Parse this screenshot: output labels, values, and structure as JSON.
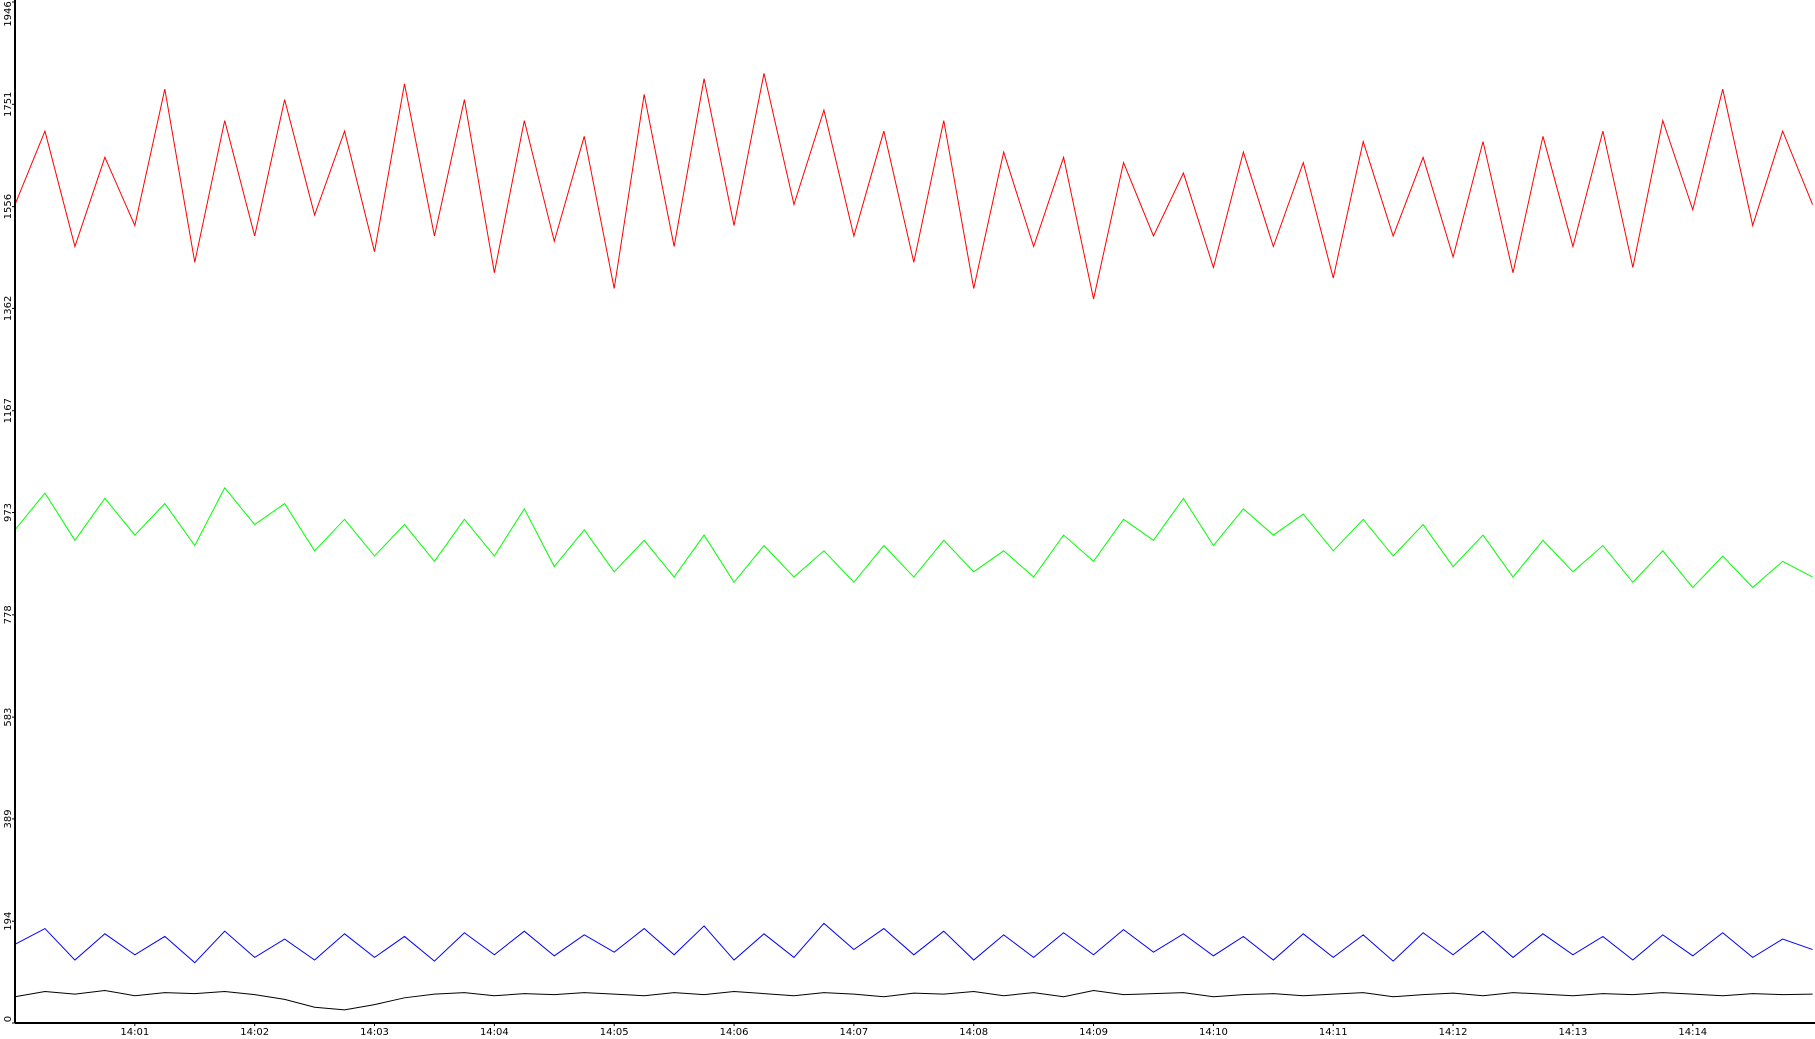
{
  "chart_data": {
    "type": "line",
    "x": [
      0,
      0.25,
      0.5,
      0.75,
      1,
      1.25,
      1.5,
      1.75,
      2,
      2.25,
      2.5,
      2.75,
      3,
      3.25,
      3.5,
      3.75,
      4,
      4.25,
      4.5,
      4.75,
      5,
      5.25,
      5.5,
      5.75,
      6,
      6.25,
      6.5,
      6.75,
      7,
      7.25,
      7.5,
      7.75,
      8,
      8.25,
      8.5,
      8.75,
      9,
      9.25,
      9.5,
      9.75,
      10,
      10.25,
      10.5,
      10.75,
      11,
      11.25,
      11.5,
      11.75,
      12,
      12.25,
      12.5,
      12.75,
      13,
      13.25,
      13.5,
      13.75,
      14,
      14.25,
      14.5,
      14.75,
      15
    ],
    "xlim": [
      0,
      15.02
    ],
    "xticks": [
      {
        "value": 1,
        "label": "14:01"
      },
      {
        "value": 2,
        "label": "14:02"
      },
      {
        "value": 3,
        "label": "14:03"
      },
      {
        "value": 4,
        "label": "14:04"
      },
      {
        "value": 5,
        "label": "14:05"
      },
      {
        "value": 6,
        "label": "14:06"
      },
      {
        "value": 7,
        "label": "14:07"
      },
      {
        "value": 8,
        "label": "14:08"
      },
      {
        "value": 9,
        "label": "14:09"
      },
      {
        "value": 10,
        "label": "14:10"
      },
      {
        "value": 11,
        "label": "14:11"
      },
      {
        "value": 12,
        "label": "14:12"
      },
      {
        "value": 13,
        "label": "14:13"
      },
      {
        "value": 14,
        "label": "14:14"
      }
    ],
    "ylim": [
      0,
      1946
    ],
    "yticks": [
      0,
      194,
      389,
      583,
      778,
      973,
      1167,
      1362,
      1556,
      1751,
      1946
    ],
    "series": [
      {
        "color": "#ff0000",
        "values": [
          1560,
          1700,
          1480,
          1650,
          1520,
          1780,
          1450,
          1720,
          1500,
          1760,
          1540,
          1700,
          1470,
          1790,
          1500,
          1760,
          1430,
          1720,
          1490,
          1690,
          1400,
          1770,
          1480,
          1800,
          1520,
          1810,
          1560,
          1740,
          1500,
          1700,
          1450,
          1720,
          1400,
          1660,
          1480,
          1650,
          1380,
          1640,
          1500,
          1620,
          1440,
          1660,
          1480,
          1640,
          1420,
          1680,
          1500,
          1650,
          1460,
          1680,
          1430,
          1690,
          1480,
          1700,
          1440,
          1720,
          1550,
          1780,
          1520,
          1700,
          1560
        ]
      },
      {
        "color": "#00ff00",
        "values": [
          940,
          1010,
          920,
          1000,
          930,
          990,
          910,
          1020,
          950,
          990,
          900,
          960,
          890,
          950,
          880,
          960,
          890,
          980,
          870,
          940,
          860,
          920,
          850,
          930,
          840,
          910,
          850,
          900,
          840,
          910,
          850,
          920,
          860,
          900,
          850,
          930,
          880,
          960,
          920,
          1000,
          910,
          980,
          930,
          970,
          900,
          960,
          890,
          950,
          870,
          930,
          850,
          920,
          860,
          910,
          840,
          900,
          830,
          890,
          830,
          880,
          850
        ]
      },
      {
        "color": "#0000ff",
        "values": [
          150,
          180,
          120,
          170,
          130,
          165,
          115,
          175,
          125,
          160,
          120,
          170,
          125,
          165,
          118,
          172,
          130,
          175,
          128,
          168,
          135,
          180,
          130,
          185,
          120,
          170,
          125,
          190,
          140,
          180,
          130,
          175,
          120,
          168,
          125,
          172,
          130,
          178,
          135,
          170,
          128,
          165,
          120,
          170,
          125,
          168,
          118,
          172,
          130,
          175,
          125,
          170,
          130,
          165,
          120,
          168,
          128,
          172,
          125,
          160,
          140
        ]
      },
      {
        "color": "#000000",
        "values": [
          50,
          60,
          55,
          62,
          52,
          58,
          56,
          60,
          54,
          45,
          30,
          25,
          35,
          48,
          55,
          58,
          52,
          56,
          54,
          58,
          55,
          52,
          58,
          54,
          60,
          56,
          52,
          58,
          55,
          50,
          57,
          55,
          60,
          52,
          58,
          50,
          62,
          54,
          56,
          58,
          50,
          54,
          56,
          52,
          55,
          58,
          50,
          54,
          57,
          52,
          58,
          55,
          52,
          56,
          54,
          58,
          55,
          52,
          56,
          54,
          55
        ]
      }
    ]
  }
}
